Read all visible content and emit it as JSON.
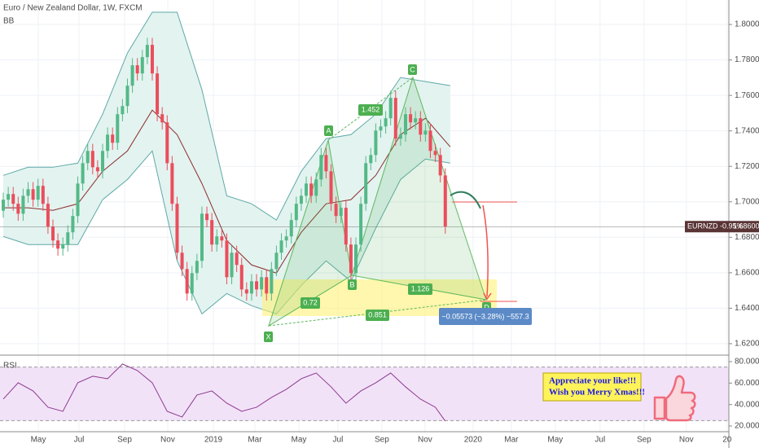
{
  "chart_data": {
    "type": "candlestick",
    "title": "Euro / New Zealand Dollar, 1W, FXCM",
    "indicator": "BB",
    "xlim": [
      -0.66,
      146.1
    ],
    "xticks": [
      {
        "value": 7.05,
        "label": "May"
      },
      {
        "value": 15.25,
        "label": "Jul"
      },
      {
        "value": 24.43,
        "label": "Sep"
      },
      {
        "value": 33.11,
        "label": "Nov"
      },
      {
        "value": 42.3,
        "label": "2019"
      },
      {
        "value": 50.66,
        "label": "Mar"
      },
      {
        "value": 59.51,
        "label": "May"
      },
      {
        "value": 67.38,
        "label": "Jul"
      },
      {
        "value": 76.23,
        "label": "Sep"
      },
      {
        "value": 84.92,
        "label": "Nov"
      },
      {
        "value": 94.59,
        "label": "2020"
      },
      {
        "value": 102.3,
        "label": "Mar"
      },
      {
        "value": 111.15,
        "label": "May"
      },
      {
        "value": 120.16,
        "label": "Jul"
      },
      {
        "value": 129.02,
        "label": "Sep"
      },
      {
        "value": 137.54,
        "label": "Nov"
      },
      {
        "value": 145.74,
        "label": "20"
      }
    ],
    "ylim": [
      1.614,
      1.8138
    ],
    "yticks": [
      {
        "value": 1.62,
        "label": "1.62000"
      },
      {
        "value": 1.64,
        "label": "1.64000"
      },
      {
        "value": 1.66,
        "label": "1.66000"
      },
      {
        "value": 1.68,
        "label": "1.68000"
      },
      {
        "value": 1.7,
        "label": "1.70000"
      },
      {
        "value": 1.72,
        "label": "1.72000"
      },
      {
        "value": 1.74,
        "label": "1.74000"
      },
      {
        "value": 1.76,
        "label": "1.76000"
      },
      {
        "value": 1.78,
        "label": "1.78000"
      },
      {
        "value": 1.8,
        "label": "1.80000"
      }
    ],
    "grid": true,
    "up_color": "#53b987",
    "down_color": "#eb4d5c",
    "open": [
      1.695,
      1.7012,
      1.7044,
      1.6989,
      1.6933,
      1.7034,
      1.7071,
      1.7012,
      1.709,
      1.6989,
      1.686,
      1.6782,
      1.6736,
      1.6759,
      1.6828,
      1.692,
      1.7103,
      1.7218,
      1.7287,
      1.7195,
      1.7172,
      1.7287,
      1.7379,
      1.7333,
      1.7494,
      1.754,
      1.7655,
      1.777,
      1.7724,
      1.7816,
      1.7885,
      1.7724,
      1.7494,
      1.7448,
      1.7218,
      1.6989,
      1.6713,
      1.6621,
      1.6483,
      1.6598,
      1.6667,
      1.6933,
      1.6897,
      1.6759,
      1.6805,
      1.6782,
      1.6575,
      1.6713,
      1.6644,
      1.6506,
      1.6483,
      1.6552,
      1.6506,
      1.6575,
      1.6483,
      1.6621,
      1.6713,
      1.6782,
      1.6805,
      1.6897,
      1.6989,
      1.7034,
      1.7103,
      1.7034,
      1.7126,
      1.7264,
      1.7172,
      1.6989,
      1.692,
      1.6966,
      1.6759,
      1.6598,
      1.6759,
      1.6989,
      1.7218,
      1.7264,
      1.7402,
      1.7425,
      1.7471,
      1.7586,
      1.7356,
      1.7379,
      1.7494,
      1.7448,
      1.7471,
      1.7379,
      1.7402,
      1.7287,
      1.7264,
      1.7149
    ],
    "high": [
      1.7052,
      1.7084,
      1.7084,
      1.7029,
      1.7074,
      1.7111,
      1.7111,
      1.713,
      1.713,
      1.7029,
      1.69,
      1.6822,
      1.6799,
      1.6868,
      1.696,
      1.7143,
      1.7258,
      1.7327,
      1.7327,
      1.7235,
      1.7327,
      1.7419,
      1.7419,
      1.7534,
      1.758,
      1.7695,
      1.781,
      1.781,
      1.7856,
      1.7925,
      1.7925,
      1.7764,
      1.7534,
      1.7488,
      1.7258,
      1.7029,
      1.6753,
      1.6661,
      1.6638,
      1.6707,
      1.6973,
      1.6973,
      1.6937,
      1.6845,
      1.6845,
      1.6822,
      1.6753,
      1.6753,
      1.6684,
      1.6546,
      1.6592,
      1.6592,
      1.6615,
      1.6615,
      1.6661,
      1.6753,
      1.6822,
      1.6845,
      1.6937,
      1.7029,
      1.7074,
      1.7143,
      1.7143,
      1.7166,
      1.7304,
      1.7304,
      1.7212,
      1.7029,
      1.7006,
      1.7006,
      1.6799,
      1.6799,
      1.7029,
      1.7258,
      1.7304,
      1.7442,
      1.7465,
      1.7511,
      1.7626,
      1.7626,
      1.7419,
      1.7534,
      1.7534,
      1.7511,
      1.7511,
      1.7442,
      1.7442,
      1.7327,
      1.7304,
      1.7189
    ],
    "low": [
      1.691,
      1.6972,
      1.6949,
      1.6893,
      1.6893,
      1.6994,
      1.6972,
      1.6972,
      1.6949,
      1.682,
      1.6742,
      1.6696,
      1.6696,
      1.6719,
      1.6788,
      1.688,
      1.7063,
      1.7178,
      1.7155,
      1.7132,
      1.7132,
      1.7247,
      1.7293,
      1.7293,
      1.7454,
      1.75,
      1.7615,
      1.7684,
      1.7684,
      1.7776,
      1.7684,
      1.7454,
      1.7408,
      1.7178,
      1.6949,
      1.6673,
      1.6581,
      1.6443,
      1.6443,
      1.6558,
      1.6627,
      1.6857,
      1.6719,
      1.6719,
      1.6742,
      1.6535,
      1.6535,
      1.6604,
      1.6466,
      1.6443,
      1.6443,
      1.6466,
      1.6466,
      1.6443,
      1.6443,
      1.6581,
      1.6673,
      1.6742,
      1.6765,
      1.6857,
      1.6949,
      1.6994,
      1.6994,
      1.6994,
      1.7086,
      1.7132,
      1.6949,
      1.688,
      1.688,
      1.6719,
      1.6558,
      1.6558,
      1.6719,
      1.6949,
      1.7178,
      1.7224,
      1.7362,
      1.7385,
      1.7431,
      1.7316,
      1.7316,
      1.7339,
      1.7408,
      1.7408,
      1.7339,
      1.7339,
      1.7247,
      1.7224,
      1.7109,
      1.682
    ],
    "close": [
      1.7012,
      1.7044,
      1.6989,
      1.6933,
      1.7034,
      1.7071,
      1.7012,
      1.709,
      1.6989,
      1.686,
      1.6782,
      1.6736,
      1.6759,
      1.6828,
      1.692,
      1.7103,
      1.7218,
      1.7287,
      1.7195,
      1.7172,
      1.7287,
      1.7379,
      1.7333,
      1.7494,
      1.754,
      1.7655,
      1.777,
      1.7724,
      1.7816,
      1.7885,
      1.7724,
      1.7494,
      1.7448,
      1.7218,
      1.6989,
      1.6713,
      1.6621,
      1.6483,
      1.6598,
      1.6667,
      1.6933,
      1.6897,
      1.6759,
      1.6805,
      1.6782,
      1.6575,
      1.6713,
      1.6644,
      1.6506,
      1.6483,
      1.6552,
      1.6506,
      1.6575,
      1.6483,
      1.6621,
      1.6713,
      1.6782,
      1.6805,
      1.6897,
      1.6989,
      1.7034,
      1.7103,
      1.7034,
      1.7126,
      1.7264,
      1.7172,
      1.6989,
      1.692,
      1.6966,
      1.6759,
      1.6598,
      1.6759,
      1.6989,
      1.7218,
      1.7264,
      1.7402,
      1.7425,
      1.7471,
      1.7586,
      1.7356,
      1.7379,
      1.7494,
      1.7448,
      1.7471,
      1.7379,
      1.7402,
      1.7287,
      1.7264,
      1.7149,
      1.686
    ],
    "bb": {
      "x": [
        0,
        5,
        10,
        15,
        20,
        25,
        30,
        35,
        40,
        45,
        50,
        55,
        60,
        65,
        70,
        75,
        80,
        85,
        90
      ],
      "upper": [
        1.7149,
        1.7195,
        1.7195,
        1.7218,
        1.7494,
        1.7839,
        1.8069,
        1.8069,
        1.7632,
        1.7034,
        1.6989,
        1.6897,
        1.7172,
        1.7356,
        1.7379,
        1.7494,
        1.7701,
        1.7678,
        1.7655
      ],
      "middle": [
        1.6966,
        1.6966,
        1.6952,
        1.6989,
        1.7172,
        1.7287,
        1.7517,
        1.7379,
        1.7103,
        1.6782,
        1.6644,
        1.6598,
        1.6828,
        1.6989,
        1.7012,
        1.7149,
        1.7379,
        1.7471,
        1.731
      ],
      "lower": [
        1.6805,
        1.6759,
        1.6759,
        1.6759,
        1.7012,
        1.7126,
        1.7287,
        1.6667,
        1.6368,
        1.6483,
        1.6414,
        1.6368,
        1.6529,
        1.6667,
        1.6552,
        1.6851,
        1.7126,
        1.7241,
        1.7218
      ],
      "band_color": "#5fa9a7",
      "basis_color": "#8a2d2d",
      "fill": "#e3f3f0"
    },
    "last_price": {
      "tag": "EURNZD -0.95%",
      "value": 1.686,
      "label": "1.68600",
      "color": "#5a3535"
    },
    "rsi": {
      "title": "RSI",
      "x": [
        0,
        3,
        6,
        9,
        12,
        15,
        18,
        21,
        24,
        27,
        30,
        33,
        36,
        39,
        42,
        45,
        48,
        51,
        54,
        57,
        60,
        63,
        66,
        69,
        72,
        75,
        78,
        81,
        84,
        87,
        89
      ],
      "values": [
        45.1,
        60.3,
        52.7,
        37.5,
        33.7,
        60.3,
        66.4,
        64.1,
        77.8,
        71.7,
        60.3,
        33.7,
        28.4,
        48.9,
        52.7,
        41.3,
        33.7,
        37.5,
        46.6,
        54.2,
        64.1,
        69.4,
        56.5,
        41.3,
        52.7,
        60.3,
        69.4,
        56.5,
        45.1,
        37.5,
        24.6
      ],
      "ylim": [
        14.7,
        85.3
      ],
      "yticks": [
        {
          "value": 20,
          "label": "20.0000"
        },
        {
          "value": 40,
          "label": "40.0000"
        },
        {
          "value": 60,
          "label": "60.0000"
        },
        {
          "value": 80,
          "label": "80.0000"
        }
      ],
      "band": [
        25,
        75
      ],
      "color": "#8e3a8e",
      "band_fill": "#f1e2f8"
    }
  },
  "pattern": {
    "labels": [
      "X",
      "A",
      "B",
      "C",
      "D"
    ],
    "ratios": [
      "1.452",
      "0.72",
      "1.126",
      "0.851"
    ],
    "measure": "−0.05573 (−3.28%) −557.3"
  },
  "sticker": {
    "lines": [
      "Appreciate your like!!!",
      "Wish you Merry Xmas!!!"
    ]
  }
}
